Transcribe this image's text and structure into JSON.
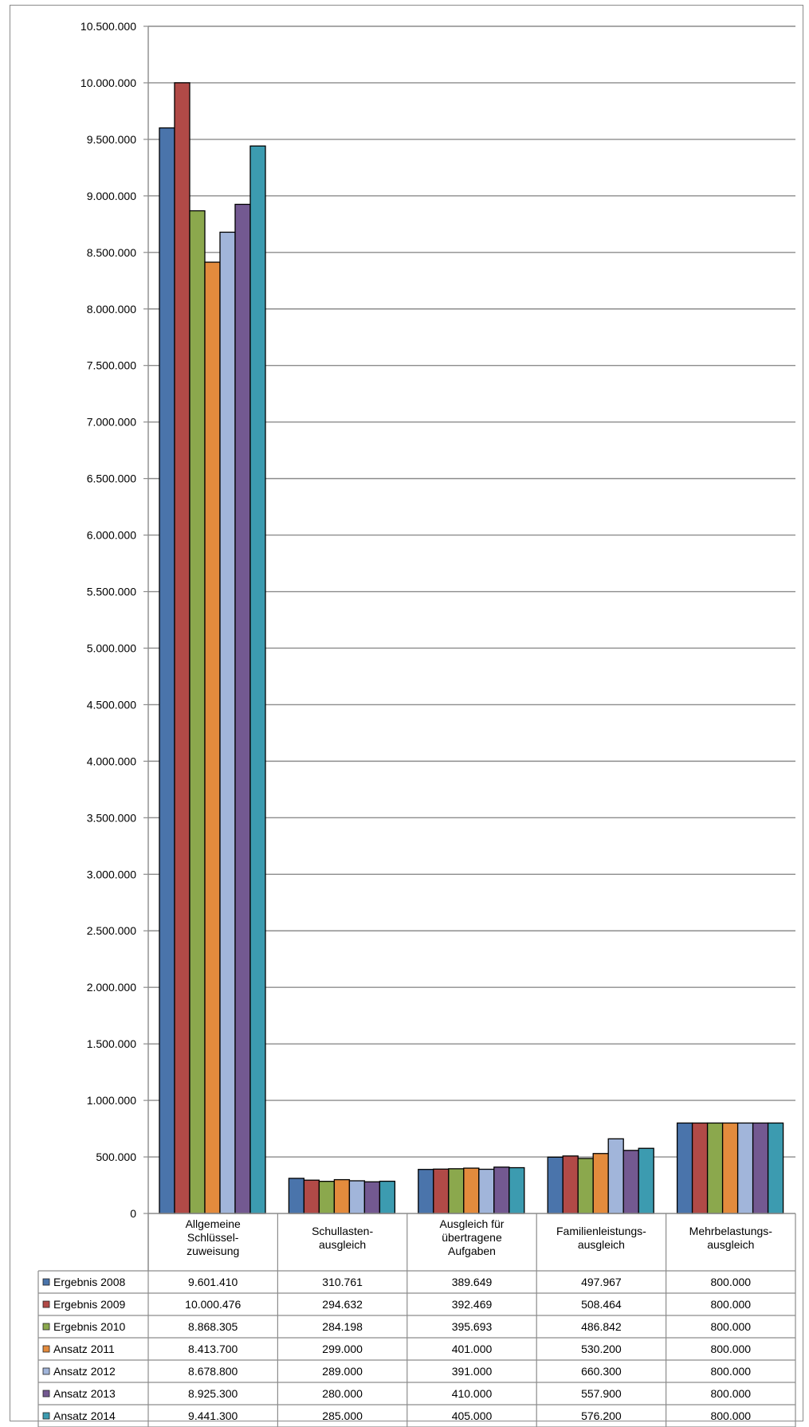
{
  "chart_data": {
    "type": "bar",
    "title": "",
    "xlabel": "",
    "ylabel": "",
    "ylim": [
      0,
      10500000
    ],
    "ytick_step": 500000,
    "yticks": [
      "0",
      "500.000",
      "1.000.000",
      "1.500.000",
      "2.000.000",
      "2.500.000",
      "3.000.000",
      "3.500.000",
      "4.000.000",
      "4.500.000",
      "5.000.000",
      "5.500.000",
      "6.000.000",
      "6.500.000",
      "7.000.000",
      "7.500.000",
      "8.000.000",
      "8.500.000",
      "9.000.000",
      "9.500.000",
      "10.000.000",
      "10.500.000"
    ],
    "grid": true,
    "legend_placement": "data-table-left",
    "categories": [
      [
        "Allgemeine",
        "Schlüssel-",
        "zuweisung"
      ],
      [
        "Schullasten-",
        "ausgleich"
      ],
      [
        "Ausgleich für",
        "übertragene",
        "Aufgaben"
      ],
      [
        "Familienleistungs-",
        "ausgleich"
      ],
      [
        "Mehrbelastungs-",
        "ausgleich"
      ]
    ],
    "series": [
      {
        "name": "Ergebnis 2008",
        "color": "#4a74ab",
        "values": [
          9601410,
          310761,
          389649,
          497967,
          800000
        ],
        "labels": [
          "9.601.410",
          "310.761",
          "389.649",
          "497.967",
          "800.000"
        ]
      },
      {
        "name": "Ergebnis 2009",
        "color": "#b14a47",
        "values": [
          10000476,
          294632,
          392469,
          508464,
          800000
        ],
        "labels": [
          "10.000.476",
          "294.632",
          "392.469",
          "508.464",
          "800.000"
        ]
      },
      {
        "name": "Ergebnis 2010",
        "color": "#8ba84d",
        "values": [
          8868305,
          284198,
          395693,
          486842,
          800000
        ],
        "labels": [
          "8.868.305",
          "284.198",
          "395.693",
          "486.842",
          "800.000"
        ]
      },
      {
        "name": "Ansatz 2011",
        "color": "#e38b3d",
        "values": [
          8413700,
          299000,
          401000,
          530200,
          800000
        ],
        "labels": [
          "8.413.700",
          "299.000",
          "401.000",
          "530.200",
          "800.000"
        ]
      },
      {
        "name": "Ansatz 2012",
        "color": "#a1b5da",
        "values": [
          8678800,
          289000,
          391000,
          660300,
          800000
        ],
        "labels": [
          "8.678.800",
          "289.000",
          "391.000",
          "660.300",
          "800.000"
        ]
      },
      {
        "name": "Ansatz 2013",
        "color": "#735991",
        "values": [
          8925300,
          280000,
          410000,
          557900,
          800000
        ],
        "labels": [
          "8.925.300",
          "280.000",
          "410.000",
          "557.900",
          "800.000"
        ]
      },
      {
        "name": "Ansatz 2014",
        "color": "#3c9bb0",
        "values": [
          9441300,
          285000,
          405000,
          576200,
          800000
        ],
        "labels": [
          "9.441.300",
          "285.000",
          "405.000",
          "576.200",
          "800.000"
        ]
      }
    ]
  }
}
